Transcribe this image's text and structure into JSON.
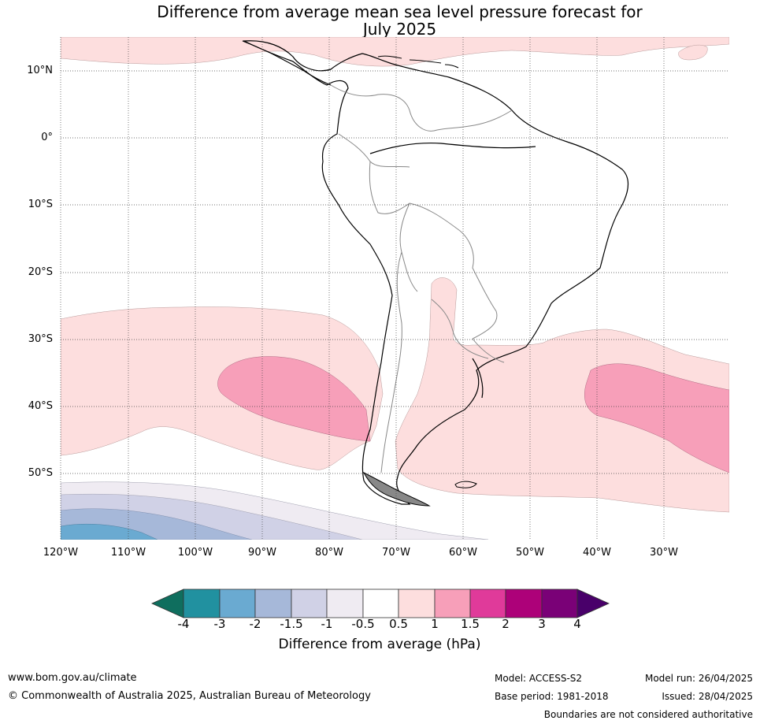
{
  "title_line1": "Difference from average mean sea level pressure forecast for",
  "title_line2": "July 2025",
  "lat_labels": [
    "10°N",
    "0°",
    "10°S",
    "20°S",
    "30°S",
    "40°S",
    "50°S"
  ],
  "lon_labels": [
    "120°W",
    "110°W",
    "100°W",
    "90°W",
    "80°W",
    "70°W",
    "60°W",
    "50°W",
    "40°W",
    "30°W"
  ],
  "colorbar": {
    "ticks": [
      "-4",
      "-3",
      "-2",
      "-1.5",
      "-1",
      "-0.5",
      "0.5",
      "1",
      "1.5",
      "2",
      "3",
      "4"
    ],
    "colors": [
      "#0f6e5e",
      "#2191a0",
      "#6aaad1",
      "#a6b8d9",
      "#d0d1e6",
      "#efebf2",
      "#ffffff",
      "#fddede",
      "#f79fb9",
      "#e03a9a",
      "#ad0179",
      "#7a0177",
      "#49006a"
    ],
    "title": "Difference from average (hPa)"
  },
  "footer": {
    "website": "www.bom.gov.au/climate",
    "copyright": "© Commonwealth of Australia 2025, Australian Bureau of Meteorology",
    "model": "Model: ACCESS-S2",
    "base_period": "Base period: 1981-2018",
    "model_run": "Model run: 26/04/2025",
    "issued": "Issued: 28/04/2025",
    "disclaimer": "Boundaries are not considered authoritative"
  }
}
